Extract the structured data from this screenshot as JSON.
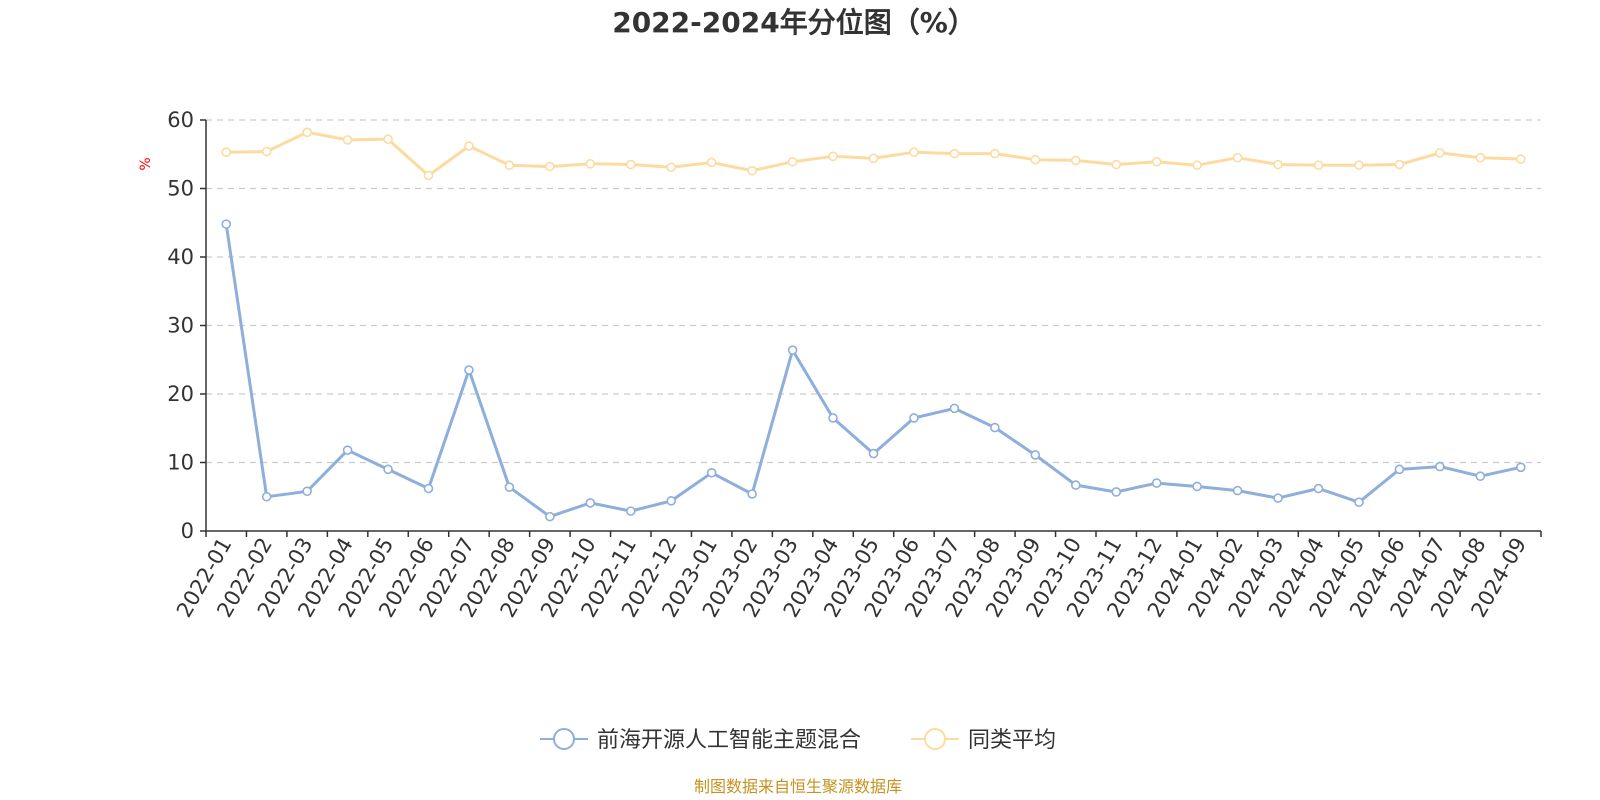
{
  "chart_data": {
    "type": "line",
    "title": "2022-2024年分位图（%）",
    "ylabel": "%",
    "ylim": [
      0,
      60
    ],
    "yticks": [
      "0",
      "10",
      "20",
      "30",
      "40",
      "50",
      "60"
    ],
    "grid": true,
    "categories": [
      "2022-01",
      "2022-02",
      "2022-03",
      "2022-04",
      "2022-05",
      "2022-06",
      "2022-07",
      "2022-08",
      "2022-09",
      "2022-10",
      "2022-11",
      "2022-12",
      "2023-01",
      "2023-02",
      "2023-03",
      "2023-04",
      "2023-05",
      "2023-06",
      "2023-07",
      "2023-08",
      "2023-09",
      "2023-10",
      "2023-11",
      "2023-12",
      "2024-01",
      "2024-02",
      "2024-03",
      "2024-04",
      "2024-05",
      "2024-06",
      "2024-07",
      "2024-08",
      "2024-09"
    ],
    "series": [
      {
        "name": "前海开源人工智能主题混合",
        "color": "#8eaedb",
        "values": [
          44.8,
          5.0,
          5.8,
          11.8,
          9.0,
          6.2,
          23.5,
          6.4,
          2.1,
          4.1,
          2.9,
          4.4,
          8.5,
          5.4,
          26.4,
          16.5,
          11.3,
          16.5,
          17.9,
          15.1,
          11.1,
          6.7,
          5.7,
          7.0,
          6.5,
          5.9,
          4.8,
          6.2,
          4.2,
          9.0,
          9.4,
          8.0,
          9.3
        ]
      },
      {
        "name": "同类平均",
        "color": "#fddba0",
        "values": [
          55.3,
          55.4,
          58.2,
          57.1,
          57.2,
          51.9,
          56.2,
          53.4,
          53.2,
          53.6,
          53.5,
          53.1,
          53.8,
          52.6,
          53.9,
          54.7,
          54.4,
          55.3,
          55.1,
          55.1,
          54.2,
          54.1,
          53.5,
          53.9,
          53.4,
          54.5,
          53.5,
          53.4,
          53.4,
          53.5,
          55.2,
          54.5,
          54.3
        ]
      }
    ],
    "legend_position": "bottom"
  },
  "source_note": "制图数据来自恒生聚源数据库",
  "colors": {
    "axis": "#333333",
    "grid": "#cccccc",
    "unit": "#ff0000",
    "source": "#c59220"
  }
}
